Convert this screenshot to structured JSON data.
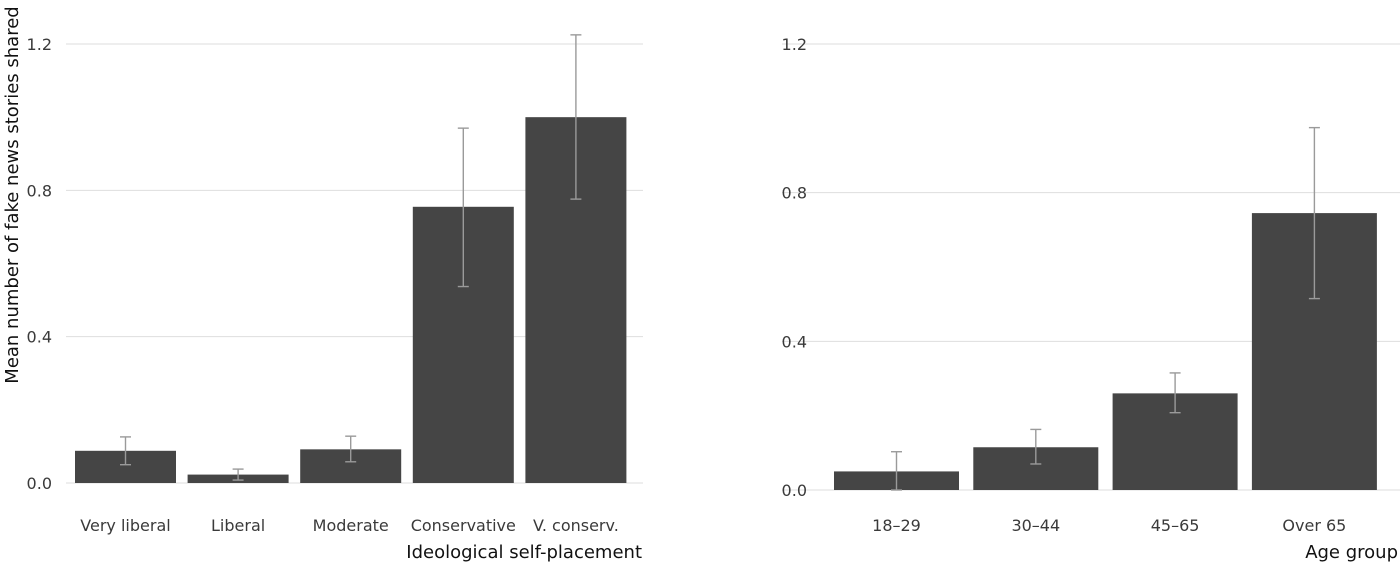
{
  "chart_data": [
    {
      "type": "bar",
      "categories": [
        "Very liberal",
        "Liberal",
        "Moderate",
        "Conservative",
        "V. conserv."
      ],
      "values": [
        0.088,
        0.023,
        0.092,
        0.755,
        1.0
      ],
      "error_low": [
        0.05,
        0.008,
        0.058,
        0.537,
        0.776
      ],
      "error_high": [
        0.126,
        0.038,
        0.128,
        0.97,
        1.225
      ],
      "xlabel": "Ideological self-placement",
      "ylabel": "Mean number of fake news stories shared",
      "ylim": [
        0,
        1.2
      ],
      "yticks": [
        "0.0",
        "0.4",
        "0.8",
        "1.2"
      ],
      "grid": true,
      "bar_color": "#454545",
      "error_color": "#9a9a9a"
    },
    {
      "type": "bar",
      "categories": [
        "18–29",
        "30–44",
        "45–65",
        "Over 65"
      ],
      "values": [
        0.05,
        0.115,
        0.26,
        0.745
      ],
      "error_low": [
        0.0,
        0.07,
        0.208,
        0.515
      ],
      "error_high": [
        0.103,
        0.163,
        0.315,
        0.975
      ],
      "xlabel": "Age group",
      "ylabel": "",
      "ylim": [
        0,
        1.2
      ],
      "yticks": [
        "0.0",
        "0.4",
        "0.8",
        "1.2"
      ],
      "grid": true,
      "bar_color": "#454545",
      "error_color": "#9a9a9a"
    }
  ]
}
